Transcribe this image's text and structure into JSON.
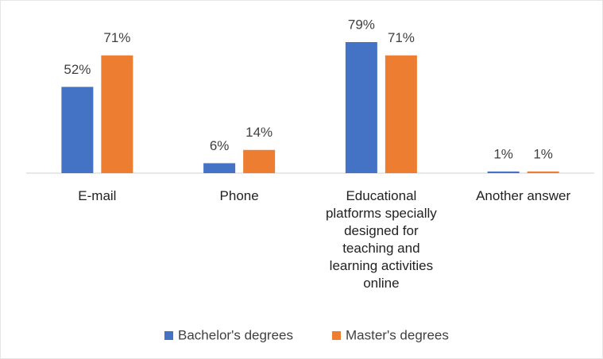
{
  "chart_data": {
    "type": "bar",
    "categories": [
      "E-mail",
      "Phone",
      "Educational platforms specially designed for teaching and learning activities online",
      "Another answer"
    ],
    "series": [
      {
        "name": "Bachelor's degrees",
        "color": "#4472c4",
        "values": [
          52,
          6,
          79,
          1
        ],
        "value_labels": [
          "52%",
          "6%",
          "79%",
          "1%"
        ]
      },
      {
        "name": "Master's degrees",
        "color": "#ed7d31",
        "values": [
          71,
          14,
          71,
          1
        ],
        "value_labels": [
          "71%",
          "14%",
          "71%",
          "1%"
        ]
      }
    ],
    "legend": "bottom"
  }
}
